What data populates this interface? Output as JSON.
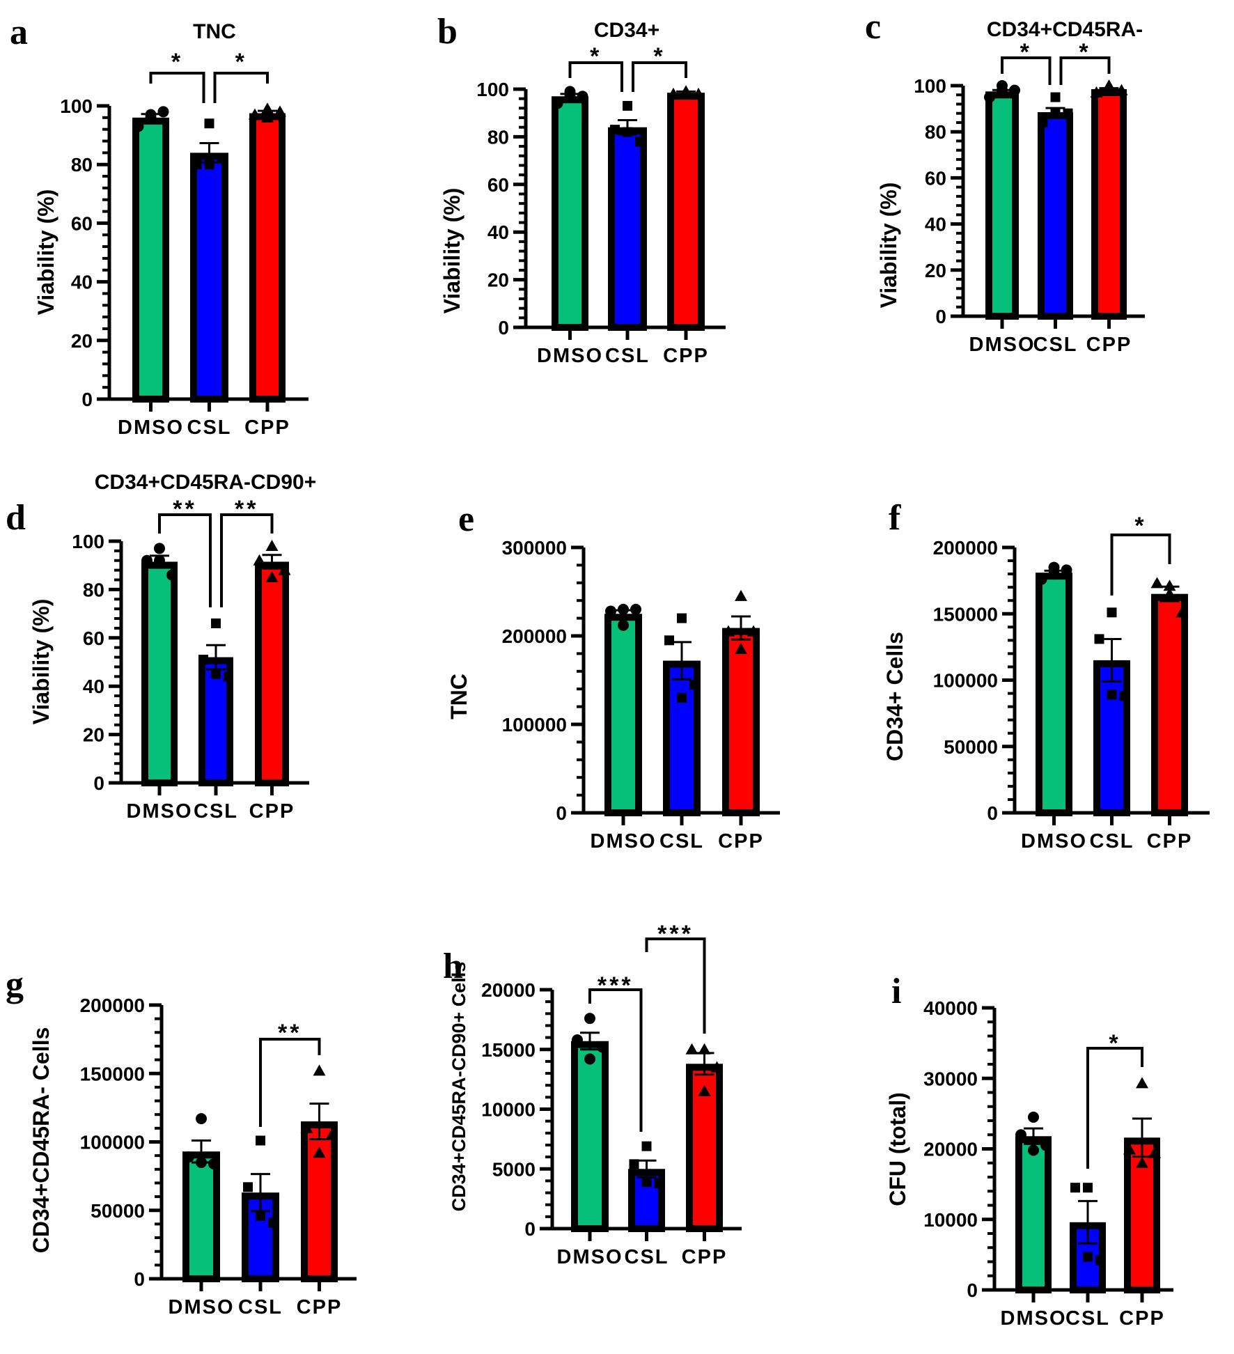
{
  "figure": {
    "groups": [
      "DMSO",
      "CSL",
      "CPP"
    ],
    "colors": {
      "DMSO": "#06bf78",
      "CSL": "#0000ff",
      "CPP": "#ff0000"
    },
    "markers": {
      "DMSO": "circle",
      "CSL": "square",
      "CPP": "triangle"
    }
  },
  "chart_data": [
    {
      "panel": "a",
      "type": "bar",
      "title": "TNC",
      "ylabel": "Viability (%)",
      "xlabel": "",
      "categories": [
        "DMSO",
        "CSL",
        "CPP"
      ],
      "ylim": [
        0,
        100
      ],
      "yticks": [
        0,
        20,
        40,
        60,
        80,
        100
      ],
      "minor_step": 4,
      "values": [
        96,
        84,
        97.5
      ],
      "sem": [
        1.2,
        3.3,
        0.8
      ],
      "points": [
        [
          97,
          93,
          98,
          96
        ],
        [
          94,
          80,
          82,
          80
        ],
        [
          99,
          97,
          98,
          96
        ]
      ],
      "significance": [
        {
          "from": "DMSO",
          "to": "CSL",
          "label": "*"
        },
        {
          "from": "CSL",
          "to": "CPP",
          "label": "*"
        }
      ]
    },
    {
      "panel": "b",
      "type": "bar",
      "title": "CD34+",
      "ylabel": "Viability (%)",
      "xlabel": "",
      "categories": [
        "DMSO",
        "CSL",
        "CPP"
      ],
      "ylim": [
        0,
        100
      ],
      "yticks": [
        0,
        20,
        40,
        60,
        80,
        100
      ],
      "minor_step": 4,
      "values": [
        97,
        84,
        98.5
      ],
      "sem": [
        1.0,
        3.0,
        0.5
      ],
      "points": [
        [
          99,
          94,
          97,
          97
        ],
        [
          93,
          83,
          78,
          82
        ],
        [
          99,
          98,
          98,
          99
        ]
      ],
      "significance": [
        {
          "from": "DMSO",
          "to": "CSL",
          "label": "*"
        },
        {
          "from": "CSL",
          "to": "CPP",
          "label": "*"
        }
      ]
    },
    {
      "panel": "c",
      "type": "bar",
      "title": "CD34+CD45RA-",
      "ylabel": "Viability (%)",
      "xlabel": "",
      "categories": [
        "DMSO",
        "CSL",
        "CPP"
      ],
      "ylim": [
        0,
        100
      ],
      "yticks": [
        0,
        20,
        40,
        60,
        80,
        100
      ],
      "minor_step": 4,
      "values": [
        97.5,
        88.5,
        98.5
      ],
      "sem": [
        0.6,
        1.8,
        0.4
      ],
      "points": [
        [
          100,
          95,
          98,
          98
        ],
        [
          95,
          84,
          88,
          88
        ],
        [
          100,
          97,
          98,
          98
        ]
      ],
      "significance": [
        {
          "from": "DMSO",
          "to": "CSL",
          "label": "*"
        },
        {
          "from": "CSL",
          "to": "CPP",
          "label": "*"
        }
      ]
    },
    {
      "panel": "d",
      "type": "bar",
      "title": "CD34+CD45RA-CD90+",
      "ylabel": "Viability (%)",
      "xlabel": "",
      "categories": [
        "DMSO",
        "CSL",
        "CPP"
      ],
      "ylim": [
        0,
        100
      ],
      "yticks": [
        0,
        20,
        40,
        60,
        80,
        100
      ],
      "minor_step": 4,
      "values": [
        91.5,
        52,
        91.5
      ],
      "sem": [
        2.5,
        5.0,
        2.8
      ],
      "points": [
        [
          97,
          92,
          86,
          92
        ],
        [
          66,
          51,
          44,
          45
        ],
        [
          98,
          92,
          88,
          85
        ]
      ],
      "significance": [
        {
          "from": "DMSO",
          "to": "CSL",
          "label": "**"
        },
        {
          "from": "CSL",
          "to": "CPP",
          "label": "**"
        }
      ]
    },
    {
      "panel": "e",
      "type": "bar",
      "title": "",
      "ylabel": "TNC",
      "xlabel": "",
      "categories": [
        "DMSO",
        "CSL",
        "CPP"
      ],
      "ylim": [
        0,
        300000
      ],
      "yticks": [
        0,
        100000,
        200000,
        300000
      ],
      "minor_step": 20000,
      "values": [
        225000,
        172000,
        209000
      ],
      "sem": [
        4000,
        21000,
        13000
      ],
      "points": [
        [
          230000,
          228000,
          230000,
          212000
        ],
        [
          220000,
          195000,
          145000,
          130000
        ],
        [
          245000,
          205000,
          205000,
          185000
        ]
      ],
      "significance": []
    },
    {
      "panel": "f",
      "type": "bar",
      "title": "",
      "ylabel": "CD34+ Cells",
      "xlabel": "",
      "categories": [
        "DMSO",
        "CSL",
        "CPP"
      ],
      "ylim": [
        0,
        200000
      ],
      "yticks": [
        0,
        50000,
        100000,
        150000,
        200000
      ],
      "minor_step": 10000,
      "values": [
        181000,
        115000,
        165000
      ],
      "sem": [
        1500,
        16000,
        5500
      ],
      "points": [
        [
          185000,
          176000,
          183000,
          180000
        ],
        [
          151000,
          131000,
          88000,
          89000
        ],
        [
          171000,
          173000,
          151000,
          165000
        ]
      ],
      "significance": [
        {
          "from": "CSL",
          "to": "CPP",
          "label": "*"
        }
      ]
    },
    {
      "panel": "g",
      "type": "bar",
      "title": "",
      "ylabel": "CD34+CD45RA- Cells",
      "xlabel": "",
      "categories": [
        "DMSO",
        "CSL",
        "CPP"
      ],
      "ylim": [
        0,
        200000
      ],
      "yticks": [
        0,
        50000,
        100000,
        150000,
        200000
      ],
      "minor_step": 10000,
      "values": [
        93000,
        63000,
        115000
      ],
      "sem": [
        8000,
        13500,
        13000
      ],
      "points": [
        [
          117000,
          89000,
          84000,
          85000
        ],
        [
          101000,
          67000,
          41000,
          46000
        ],
        [
          152000,
          110000,
          105000,
          92000
        ]
      ],
      "significance": [
        {
          "from": "CSL",
          "to": "CPP",
          "label": "**"
        }
      ]
    },
    {
      "panel": "h",
      "type": "bar",
      "title": "",
      "ylabel": "CD34+CD45RA-CD90+ Cells",
      "xlabel": "",
      "categories": [
        "DMSO",
        "CSL",
        "CPP"
      ],
      "ylim": [
        0,
        20000
      ],
      "yticks": [
        0,
        5000,
        10000,
        15000,
        20000
      ],
      "minor_step": 1000,
      "values": [
        15700,
        5000,
        13800
      ],
      "sem": [
        700,
        700,
        900
      ],
      "points": [
        [
          17600,
          15800,
          15200,
          14200
        ],
        [
          6900,
          5400,
          3800,
          3900
        ],
        [
          15000,
          15000,
          13500,
          11500
        ]
      ],
      "significance": [
        {
          "from": "DMSO",
          "to": "CSL",
          "label": "***"
        },
        {
          "from": "CSL",
          "to": "CPP",
          "label": "***"
        }
      ]
    },
    {
      "panel": "i",
      "type": "bar",
      "title": "",
      "ylabel": "CFU (total)",
      "xlabel": "",
      "categories": [
        "DMSO",
        "CSL",
        "CPP"
      ],
      "ylim": [
        0,
        40000
      ],
      "yticks": [
        0,
        10000,
        20000,
        30000,
        40000
      ],
      "minor_step": 2000,
      "values": [
        21800,
        9600,
        21600
      ],
      "sem": [
        1100,
        3000,
        2700
      ],
      "points": [
        [
          24500,
          22000,
          20500,
          19800
        ],
        [
          14500,
          14500,
          4200,
          4700
        ],
        [
          29300,
          19900,
          19400,
          18000
        ]
      ],
      "significance": [
        {
          "from": "CSL",
          "to": "CPP",
          "label": "*"
        }
      ]
    }
  ]
}
